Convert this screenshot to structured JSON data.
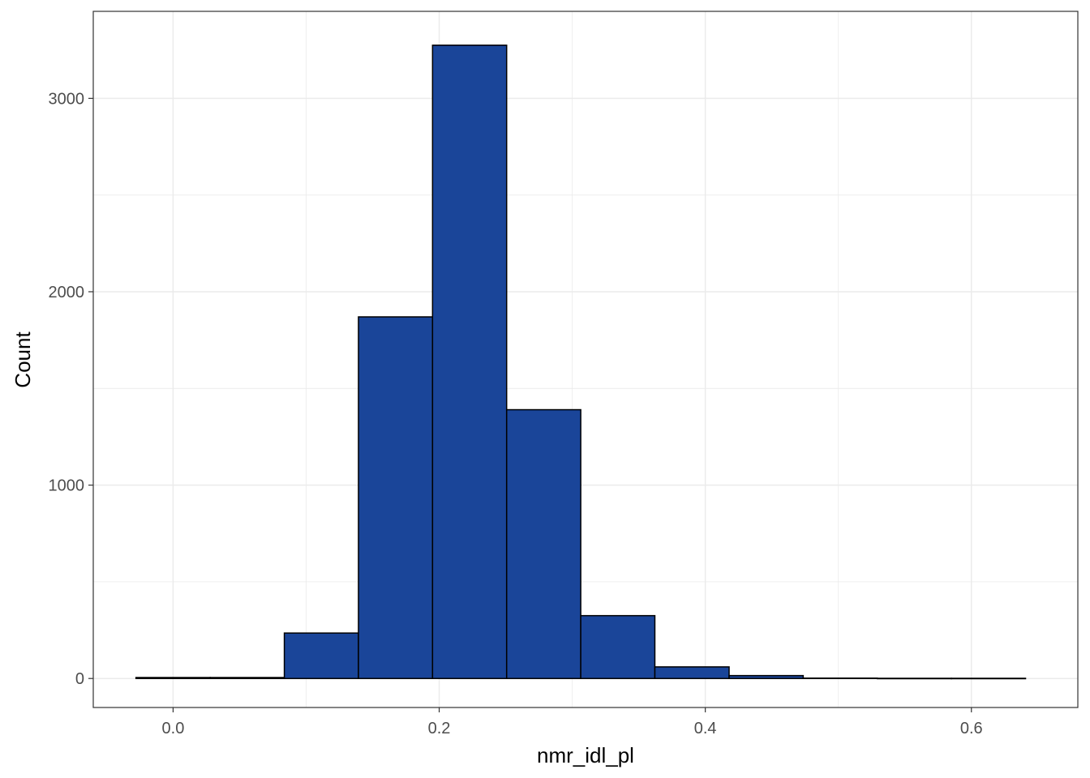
{
  "chart_data": {
    "type": "bar",
    "subtype": "histogram",
    "title": "",
    "xlabel": "nmr_idl_pl",
    "ylabel": "Count",
    "xlim": [
      -0.06,
      0.68
    ],
    "ylim": [
      -150,
      3450
    ],
    "x_ticks": [
      0.0,
      0.2,
      0.4,
      0.6
    ],
    "x_tick_labels": [
      "0.0",
      "0.2",
      "0.4",
      "0.6"
    ],
    "y_ticks": [
      0,
      1000,
      2000,
      3000
    ],
    "y_tick_labels": [
      "0",
      "1000",
      "2000",
      "3000"
    ],
    "bins": [
      {
        "x0": -0.0279,
        "x1": 0.0279,
        "count": 5
      },
      {
        "x0": 0.0279,
        "x1": 0.0836,
        "count": 5
      },
      {
        "x0": 0.0836,
        "x1": 0.1393,
        "count": 235
      },
      {
        "x0": 0.1393,
        "x1": 0.195,
        "count": 1870
      },
      {
        "x0": 0.195,
        "x1": 0.2507,
        "count": 3275
      },
      {
        "x0": 0.2507,
        "x1": 0.3064,
        "count": 1390
      },
      {
        "x0": 0.3064,
        "x1": 0.3621,
        "count": 325
      },
      {
        "x0": 0.3621,
        "x1": 0.4179,
        "count": 60
      },
      {
        "x0": 0.4179,
        "x1": 0.4736,
        "count": 15
      },
      {
        "x0": 0.4736,
        "x1": 0.5293,
        "count": 2
      },
      {
        "x0": 0.5293,
        "x1": 0.585,
        "count": 1
      },
      {
        "x0": 0.585,
        "x1": 0.6407,
        "count": 1
      }
    ],
    "grid": true,
    "legend": "none",
    "colors": {
      "bar_fill": "#1A4599",
      "bar_stroke": "#000000",
      "grid": "#EBEBEB",
      "panel_border": "#333333",
      "tick_text": "#4D4D4D"
    }
  }
}
